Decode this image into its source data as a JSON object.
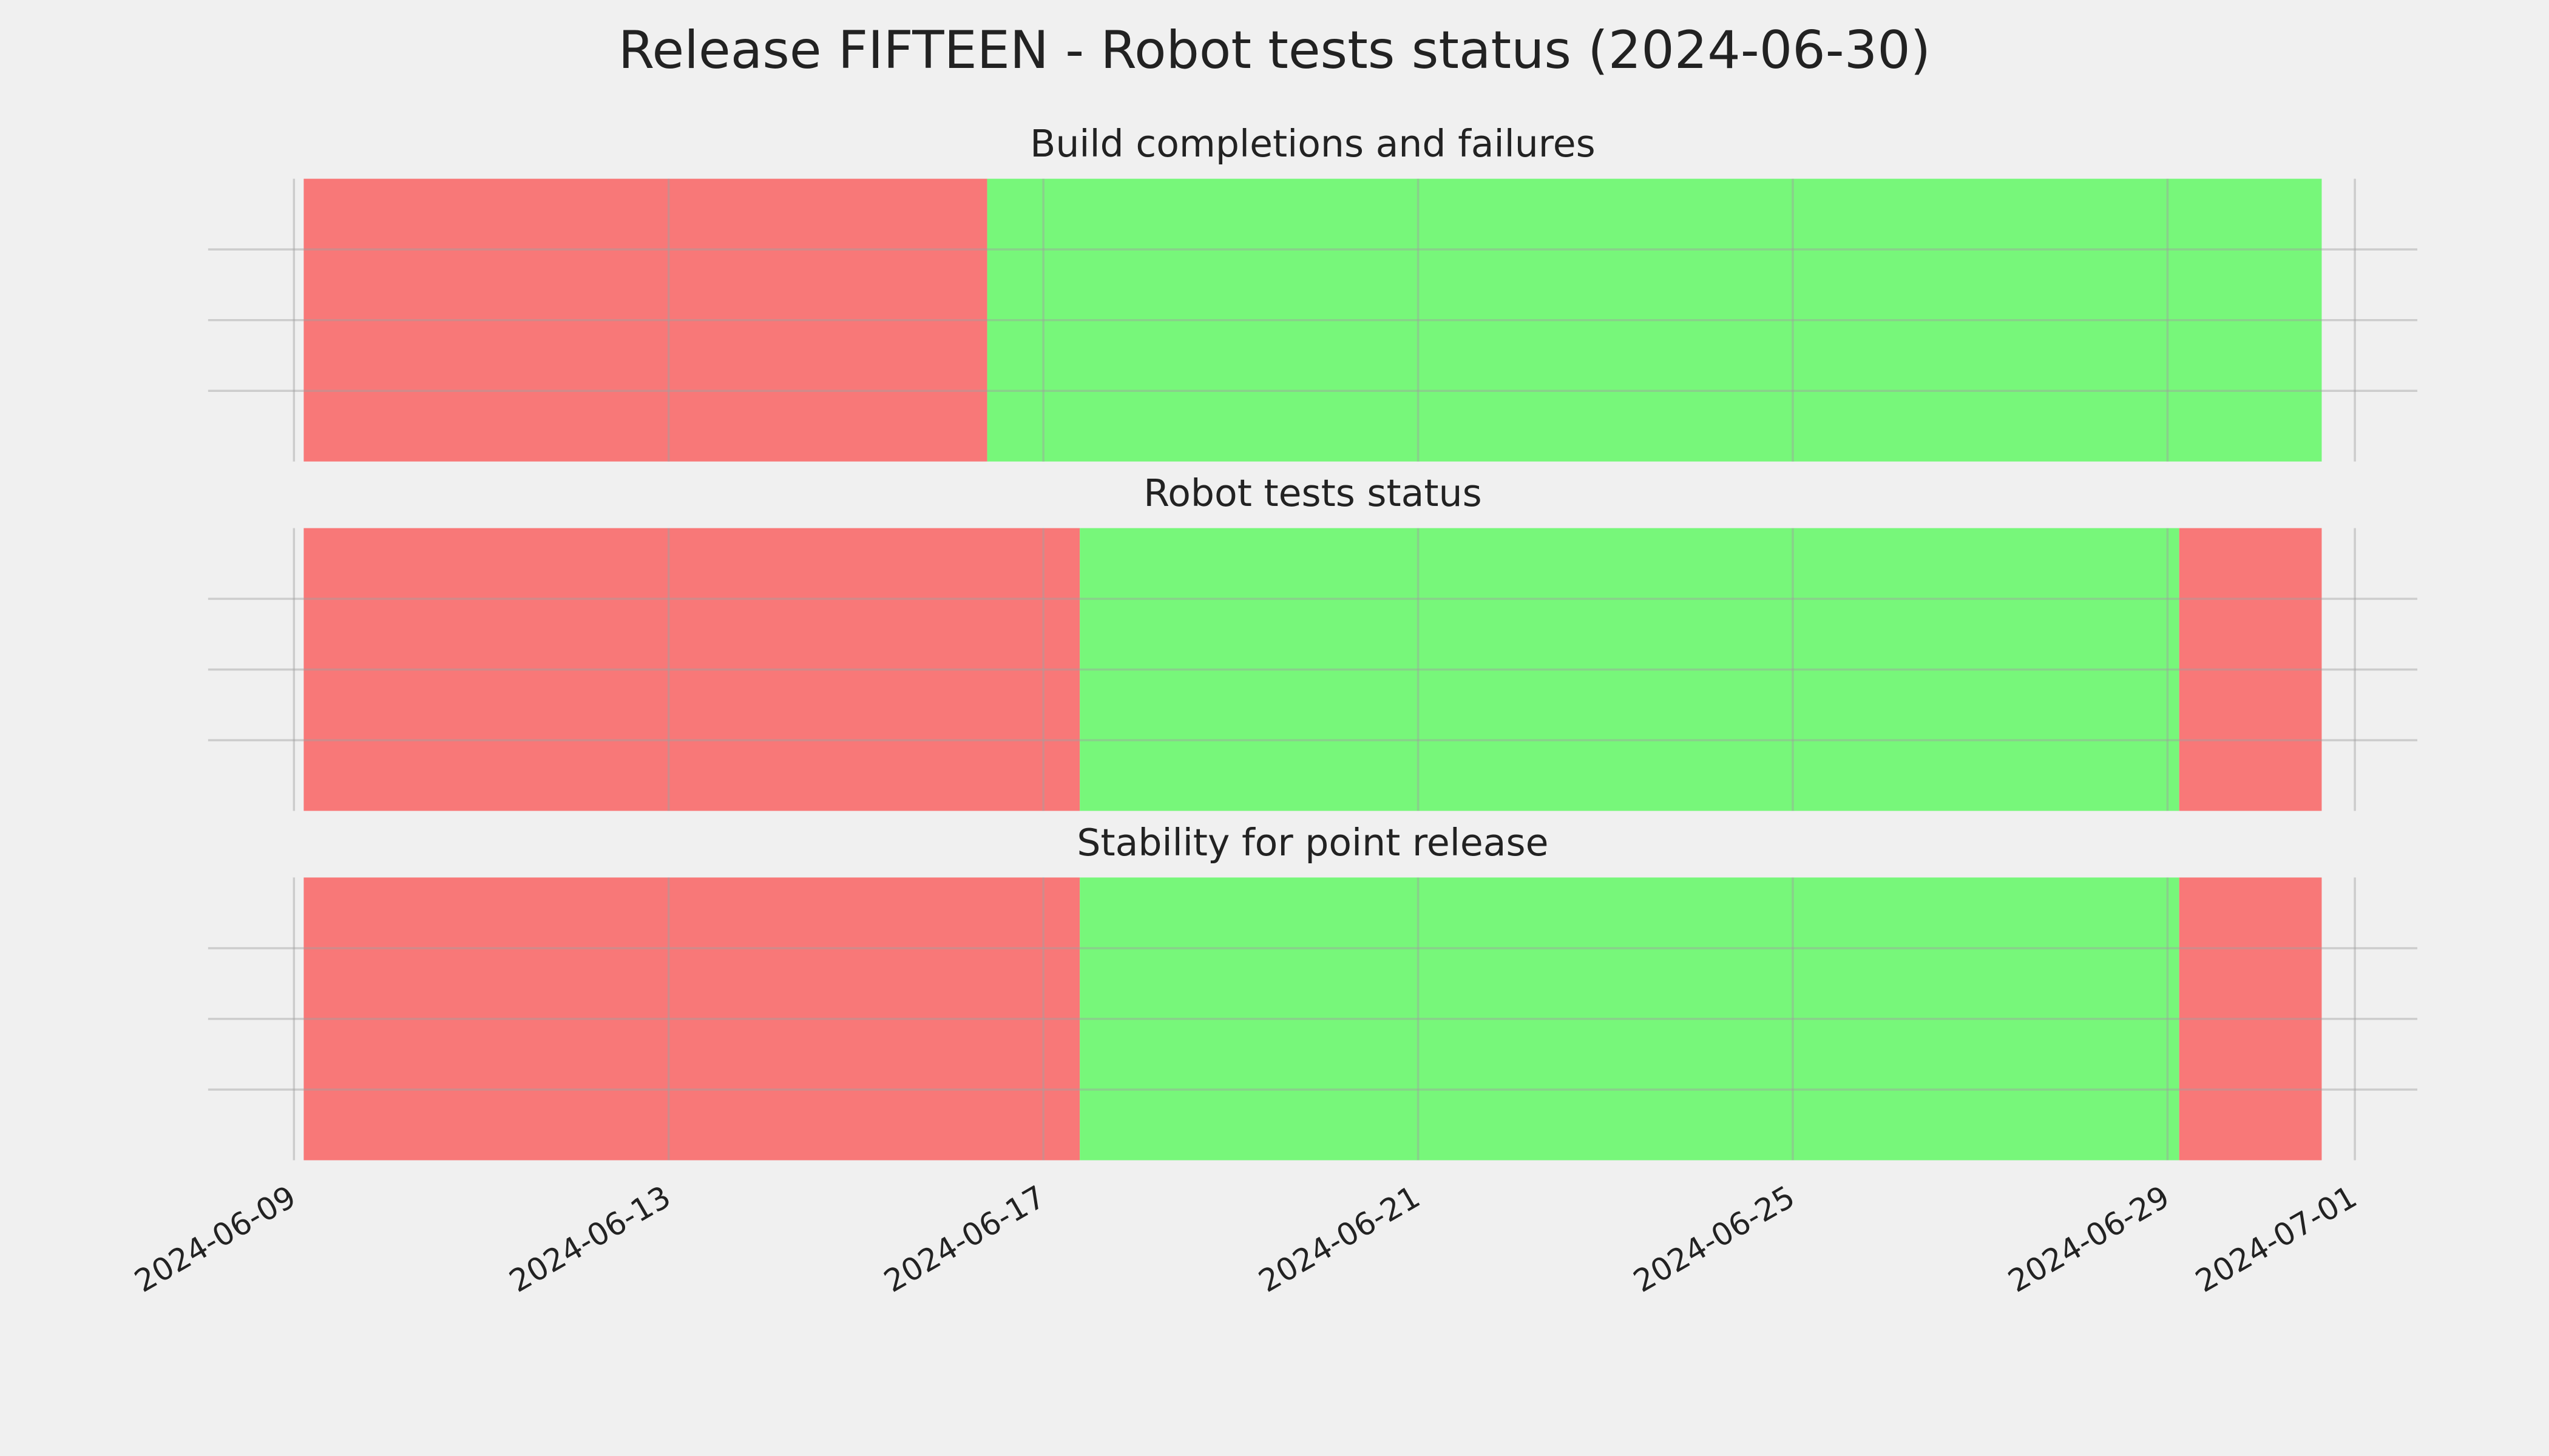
{
  "title": "Release FIFTEEN - Robot tests status (2024-06-30)",
  "chart_data": [
    {
      "type": "timeline",
      "title": "Build completions and failures",
      "segments": [
        {
          "start": "2024-06-09T02:30",
          "end": "2024-06-16T09:36",
          "color": "#f87878"
        },
        {
          "start": "2024-06-16T09:36",
          "end": "2024-06-30T15:30",
          "color": "#77f77a"
        }
      ],
      "xlim": [
        "2024-06-08T02:00",
        "2024-07-01T16:00"
      ],
      "xticks": [
        "2024-06-09",
        "2024-06-13",
        "2024-06-17",
        "2024-06-21",
        "2024-06-25",
        "2024-06-29",
        "2024-07-01"
      ],
      "ylim": [
        0,
        1
      ],
      "yticks": [
        0.25,
        0.5,
        0.75
      ],
      "grid": true
    },
    {
      "type": "timeline",
      "title": "Robot tests status",
      "segments": [
        {
          "start": "2024-06-09T02:30",
          "end": "2024-06-17T09:20",
          "color": "#f87878"
        },
        {
          "start": "2024-06-17T09:20",
          "end": "2024-06-29T03:00",
          "color": "#77f77a"
        },
        {
          "start": "2024-06-29T03:00",
          "end": "2024-06-30T15:30",
          "color": "#f87878"
        }
      ],
      "xlim": [
        "2024-06-08T02:00",
        "2024-07-01T16:00"
      ],
      "xticks": [
        "2024-06-09",
        "2024-06-13",
        "2024-06-17",
        "2024-06-21",
        "2024-06-25",
        "2024-06-29",
        "2024-07-01"
      ],
      "ylim": [
        0,
        1
      ],
      "yticks": [
        0.25,
        0.5,
        0.75
      ],
      "grid": true
    },
    {
      "type": "timeline",
      "title": "Stability for point release",
      "segments": [
        {
          "start": "2024-06-09T02:30",
          "end": "2024-06-17T09:20",
          "color": "#f87878"
        },
        {
          "start": "2024-06-17T09:20",
          "end": "2024-06-29T03:00",
          "color": "#77f77a"
        },
        {
          "start": "2024-06-29T03:00",
          "end": "2024-06-30T15:30",
          "color": "#f87878"
        }
      ],
      "xlim": [
        "2024-06-08T02:00",
        "2024-07-01T16:00"
      ],
      "xticks": [
        "2024-06-09",
        "2024-06-13",
        "2024-06-17",
        "2024-06-21",
        "2024-06-25",
        "2024-06-29",
        "2024-07-01"
      ],
      "ylim": [
        0,
        1
      ],
      "yticks": [
        0.25,
        0.5,
        0.75
      ],
      "grid": true,
      "show_xtick_labels": true
    }
  ]
}
